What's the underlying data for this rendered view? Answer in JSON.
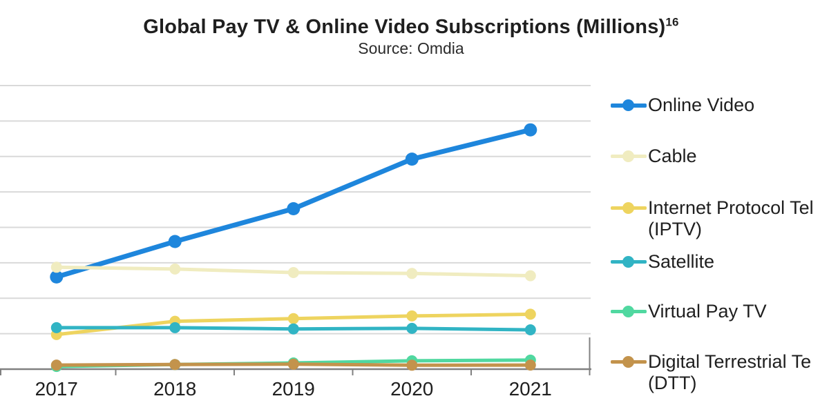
{
  "title": {
    "text": "Global Pay TV & Online Video Subscriptions (Millions)",
    "superscript": "16"
  },
  "subtitle": "Source: Omdia",
  "chart_data": {
    "type": "line",
    "title": "Global Pay TV & Online Video Subscriptions (Millions)",
    "title_footnote_marker": "16",
    "subtitle": "Source: Omdia",
    "categories": [
      "2017",
      "2018",
      "2019",
      "2020",
      "2021"
    ],
    "xlabel": "",
    "ylabel": "",
    "unit": "millions of subscriptions",
    "value_note": "y-axis tick labels are cropped out of the image; values estimated from gridlines at 200M spacing",
    "ylim": [
      0,
      1600
    ],
    "gridline_step": 200,
    "grid": "horizontal",
    "y_axis_labels_visible": false,
    "legend_position": "right",
    "gridline_color": "#D9D9D9",
    "axis_color": "#808080",
    "text_color": "#1F1F1F",
    "series": [
      {
        "name": "Online Video",
        "slug": "online-video",
        "legend_lines": [
          "Online Video"
        ],
        "color": "#1E86DC",
        "values": [
          520,
          720,
          905,
          1185,
          1350
        ]
      },
      {
        "name": "Cable",
        "slug": "cable",
        "legend_lines": [
          "Cable"
        ],
        "color": "#F0ECC0",
        "values": [
          575,
          565,
          545,
          540,
          527
        ]
      },
      {
        "name": "Internet Protocol Television (IPTV)",
        "slug": "iptv",
        "legend_lines": [
          "Internet Protocol Tel",
          "(IPTV)"
        ],
        "color": "#EED45F",
        "values": [
          195,
          270,
          285,
          300,
          310
        ]
      },
      {
        "name": "Satellite",
        "slug": "satellite",
        "legend_lines": [
          "Satellite"
        ],
        "color": "#31B4C4",
        "values": [
          234,
          234,
          227,
          230,
          222
        ]
      },
      {
        "name": "Virtual Pay TV",
        "slug": "virtual-pay-tv",
        "legend_lines": [
          "Virtual Pay TV"
        ],
        "color": "#50D8A0",
        "values": [
          15,
          26,
          35,
          47,
          51
        ]
      },
      {
        "name": "Digital Terrestrial Television (DTT)",
        "slug": "dtt",
        "legend_lines": [
          "Digital Terrestrial Te",
          "(DTT)"
        ],
        "color": "#C3934C",
        "values": [
          23,
          26,
          28,
          22,
          23
        ]
      }
    ]
  }
}
